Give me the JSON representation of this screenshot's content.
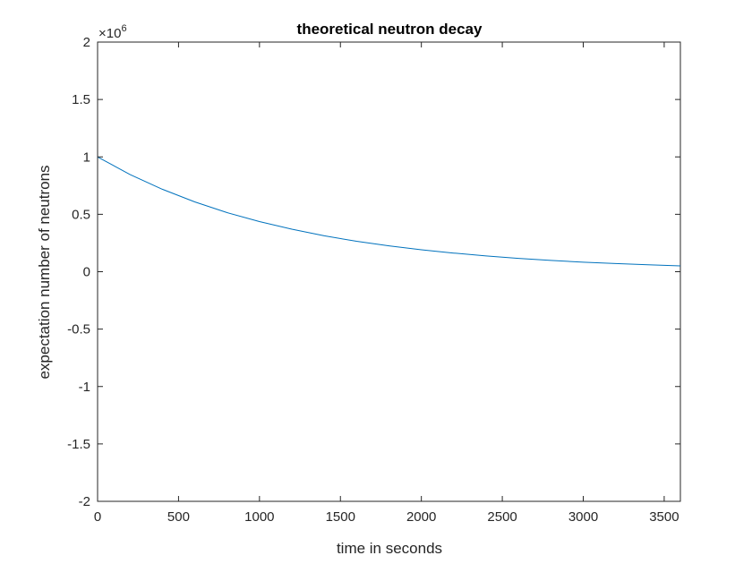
{
  "chart_data": {
    "type": "line",
    "title": "theoretical neutron decay",
    "xlabel": "time in seconds",
    "ylabel": "expectation number of neutrons",
    "xlim": [
      0,
      3600
    ],
    "ylim": [
      -2,
      2
    ],
    "y_multiplier_base": "×10",
    "y_multiplier_exponent": "6",
    "x_ticks": [
      0,
      500,
      1000,
      1500,
      2000,
      2500,
      3000,
      3500
    ],
    "x_tick_labels": [
      "0",
      "500",
      "1000",
      "1500",
      "2000",
      "2500",
      "3000",
      "3500"
    ],
    "y_ticks": [
      -2,
      -1.5,
      -1,
      -0.5,
      0,
      0.5,
      1,
      1.5,
      2
    ],
    "y_tick_labels": [
      "-2",
      "-1.5",
      "-1",
      "-0.5",
      "0",
      "0.5",
      "1",
      "1.5",
      "2"
    ],
    "grid": false,
    "line_color": "#0072BD",
    "series": [
      {
        "x": [
          0,
          200,
          400,
          600,
          800,
          1000,
          1200,
          1400,
          1600,
          1800,
          2000,
          2200,
          2400,
          2600,
          2800,
          3000,
          3200,
          3400,
          3600
        ],
        "y": [
          1.0,
          0.847,
          0.718,
          0.608,
          0.515,
          0.437,
          0.37,
          0.313,
          0.265,
          0.225,
          0.191,
          0.162,
          0.137,
          0.116,
          0.098,
          0.083,
          0.071,
          0.06,
          0.051
        ]
      }
    ]
  }
}
